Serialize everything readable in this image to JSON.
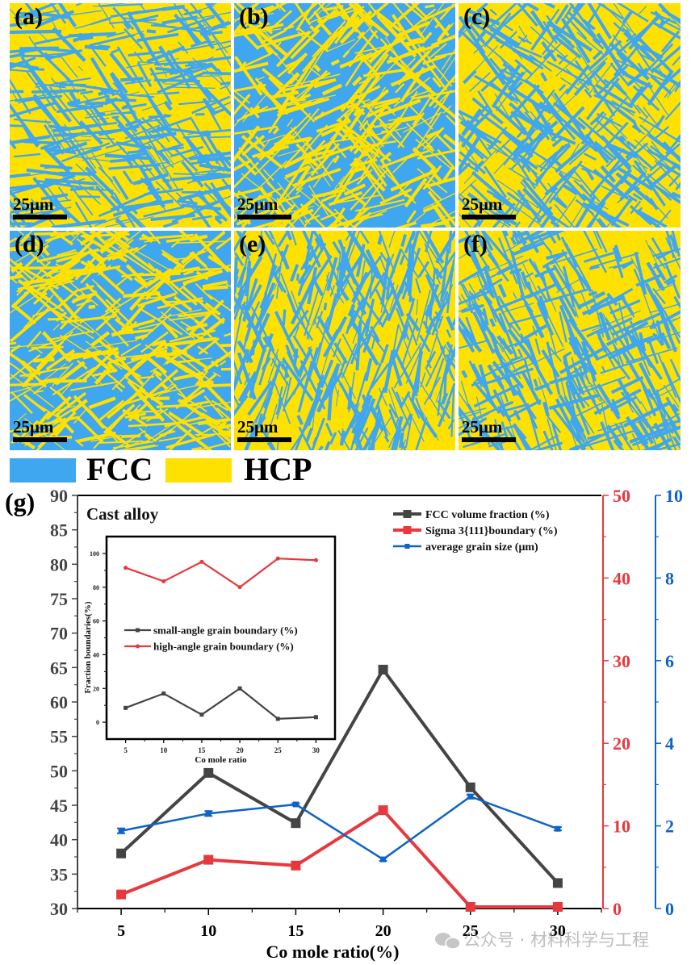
{
  "panels": [
    {
      "label": "(a)",
      "scale": "25μm",
      "hcp_share": 0.62
    },
    {
      "label": "(b)",
      "scale": "25μm",
      "hcp_share": 0.45
    },
    {
      "label": "(c)",
      "scale": "25μm",
      "hcp_share": 0.55
    },
    {
      "label": "(d)",
      "scale": "25μm",
      "hcp_share": 0.3
    },
    {
      "label": "(e)",
      "scale": "25μm",
      "hcp_share": 0.52
    },
    {
      "label": "(f)",
      "scale": "25μm",
      "hcp_share": 0.6
    }
  ],
  "phase_legend": [
    {
      "name": "FCC",
      "color": "#3fa6f0"
    },
    {
      "name": "HCP",
      "color": "#ffe100"
    }
  ],
  "colors": {
    "black_series": "#444444",
    "red_series": "#e8383d",
    "blue_series": "#0d63c8",
    "left_axis_text": "#444444"
  },
  "chart_data": [
    {
      "type": "line",
      "panel_label": "(g)",
      "annotation": "Cast alloy",
      "xlabel": "Co mole ratio(%)",
      "x": [
        5,
        10,
        15,
        20,
        25,
        30
      ],
      "xticks": [
        "5",
        "10",
        "15",
        "20",
        "25",
        "30"
      ],
      "xlim": [
        2.5,
        32.5
      ],
      "legend_position": "top-right",
      "axes": {
        "left": {
          "ylim": [
            30,
            90
          ],
          "ticks": [
            "30",
            "35",
            "40",
            "45",
            "50",
            "55",
            "60",
            "65",
            "70",
            "75",
            "80",
            "85",
            "90"
          ]
        },
        "right_red": {
          "ylim": [
            0,
            50
          ],
          "ticks": [
            "0",
            "10",
            "20",
            "30",
            "40",
            "50"
          ]
        },
        "right_blue": {
          "ylim": [
            0,
            10
          ],
          "ticks": [
            "0",
            "2",
            "4",
            "6",
            "8",
            "10"
          ]
        }
      },
      "series": [
        {
          "name": "FCC volume fraction (%)",
          "axis": "left",
          "color": "#444444",
          "marker": "square",
          "values": [
            38.0,
            49.7,
            42.4,
            64.7,
            47.6,
            33.7
          ]
        },
        {
          "name": "Sigma 3{111}boundary (%)",
          "axis": "right_red",
          "color": "#e8383d",
          "marker": "square",
          "values": [
            1.7,
            5.9,
            5.2,
            11.9,
            0.2,
            0.2
          ]
        },
        {
          "name": "average grain size (μm)",
          "axis": "right_blue",
          "color": "#0d63c8",
          "marker": "small-square",
          "values": [
            1.88,
            2.3,
            2.52,
            1.19,
            2.71,
            1.93
          ],
          "errors": [
            0.06,
            0.06,
            0.03,
            0.04,
            0.05,
            0.04
          ]
        }
      ]
    },
    {
      "type": "line",
      "title": "inset",
      "xlabel": "Co mole ratio",
      "ylabel": "Fraction boundaries(%)",
      "x": [
        5,
        10,
        15,
        20,
        25,
        30
      ],
      "xticks": [
        "5",
        "10",
        "15",
        "20",
        "25",
        "30"
      ],
      "xlim": [
        2.5,
        32.5
      ],
      "ylim": [
        -10,
        110
      ],
      "yticks": [
        "0",
        "20",
        "40",
        "60",
        "80",
        "100"
      ],
      "series": [
        {
          "name": "small-angle grain boundary (%)",
          "color": "#444444",
          "values": [
            8.5,
            17.0,
            4.5,
            20.0,
            2.0,
            3.0
          ]
        },
        {
          "name": "high-angle grain boundary (%)",
          "color": "#e8383d",
          "values": [
            91.5,
            83.5,
            95.0,
            80.0,
            97.0,
            96.0
          ]
        }
      ]
    }
  ],
  "watermark": "公众号 · 材料科学与工程"
}
